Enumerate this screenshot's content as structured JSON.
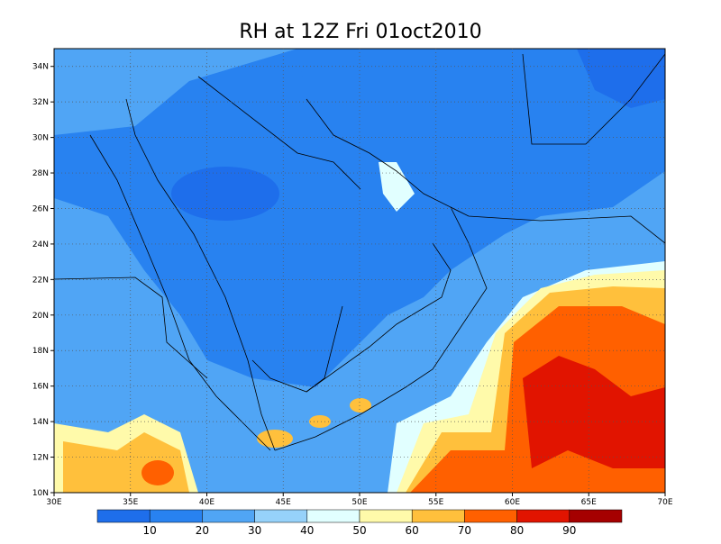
{
  "title": "RH at 12Z Fri 01oct2010",
  "map": {
    "lon_ticks": [
      "30E",
      "35E",
      "40E",
      "45E",
      "50E",
      "55E",
      "60E",
      "65E",
      "70E"
    ],
    "lat_ticks": [
      "10N",
      "12N",
      "14N",
      "16N",
      "18N",
      "20N",
      "22N",
      "24N",
      "26N",
      "28N",
      "30N",
      "32N",
      "34N"
    ]
  },
  "colorbar": {
    "levels": [
      10,
      20,
      30,
      40,
      50,
      60,
      70,
      80,
      90
    ],
    "colors": [
      "#1e6eeb",
      "#2882f0",
      "#50a5f5",
      "#96d2fa",
      "#e1ffff",
      "#fffaaa",
      "#ffc03c",
      "#ff6000",
      "#e11400",
      "#a50000"
    ]
  }
}
